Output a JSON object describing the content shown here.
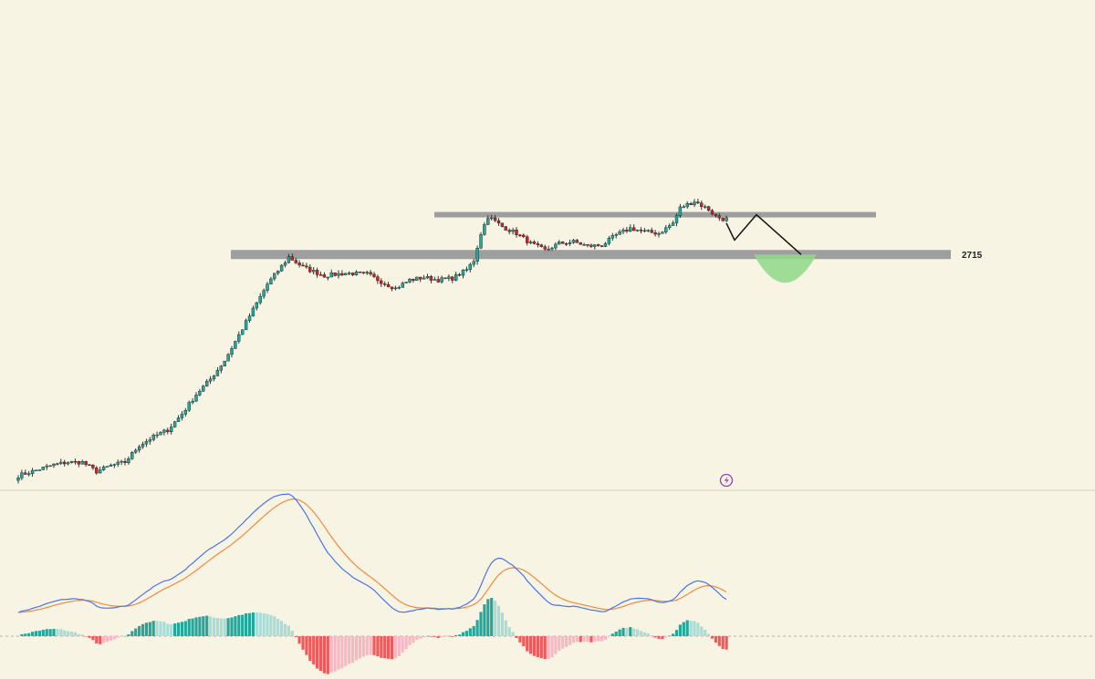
{
  "colors": {
    "background": "#f8f4e4",
    "bull": "#26a69a",
    "bear": "#c62828",
    "wick": "#222222",
    "zone": "#9e9e9e",
    "target_zone": "#8fd88a",
    "path": "#111111",
    "macd_line": "#4a74e8",
    "signal_line": "#f08a3c",
    "hist_pos_strong": "#26a69a",
    "hist_pos_weak": "#a8dcd6",
    "hist_neg_strong": "#f05a5a",
    "hist_neg_weak": "#f6b8c4",
    "divider": "#d8d2bc",
    "icon": "#8e44ad"
  },
  "annotations": {
    "support_label": "2715"
  },
  "icons": {
    "event_marker": "lightning-icon"
  },
  "chart_data": [
    {
      "type": "candlestick",
      "grid": false,
      "ylim": [
        2440,
        2854
      ],
      "horizontal_levels": [
        {
          "value": 2715,
          "label": "2715"
        },
        {
          "value": 2762,
          "label": ""
        }
      ],
      "projected_path": [
        [
          0,
          2752
        ],
        [
          1,
          2732
        ],
        [
          2,
          2762
        ],
        [
          3,
          2715
        ]
      ],
      "target_zone_center": 2715,
      "waypoints": [
        [
          0,
          2454
        ],
        [
          10,
          2467
        ],
        [
          14,
          2470
        ],
        [
          18,
          2470
        ],
        [
          22,
          2459
        ],
        [
          26,
          2466
        ],
        [
          30,
          2470
        ],
        [
          34,
          2490
        ],
        [
          38,
          2500
        ],
        [
          42,
          2508
        ],
        [
          46,
          2527
        ],
        [
          50,
          2550
        ],
        [
          54,
          2568
        ],
        [
          58,
          2590
        ],
        [
          62,
          2620
        ],
        [
          66,
          2650
        ],
        [
          70,
          2680
        ],
        [
          76,
          2712
        ],
        [
          80,
          2700
        ],
        [
          86,
          2690
        ],
        [
          92,
          2693
        ],
        [
          98,
          2692
        ],
        [
          102,
          2683
        ],
        [
          106,
          2675
        ],
        [
          110,
          2685
        ],
        [
          114,
          2688
        ],
        [
          118,
          2685
        ],
        [
          122,
          2687
        ],
        [
          126,
          2697
        ],
        [
          128,
          2708
        ],
        [
          130,
          2740
        ],
        [
          132,
          2760
        ],
        [
          136,
          2748
        ],
        [
          140,
          2740
        ],
        [
          144,
          2728
        ],
        [
          148,
          2720
        ],
        [
          152,
          2728
        ],
        [
          156,
          2730
        ],
        [
          160,
          2725
        ],
        [
          164,
          2726
        ],
        [
          168,
          2738
        ],
        [
          172,
          2746
        ],
        [
          176,
          2742
        ],
        [
          180,
          2740
        ],
        [
          184,
          2752
        ],
        [
          186,
          2770
        ],
        [
          190,
          2778
        ],
        [
          194,
          2768
        ],
        [
          196,
          2760
        ],
        [
          198,
          2757
        ]
      ]
    },
    {
      "type": "histogram",
      "name": "MACD",
      "grid": false,
      "ylim": [
        -1,
        1
      ],
      "zero_line": true
    }
  ]
}
